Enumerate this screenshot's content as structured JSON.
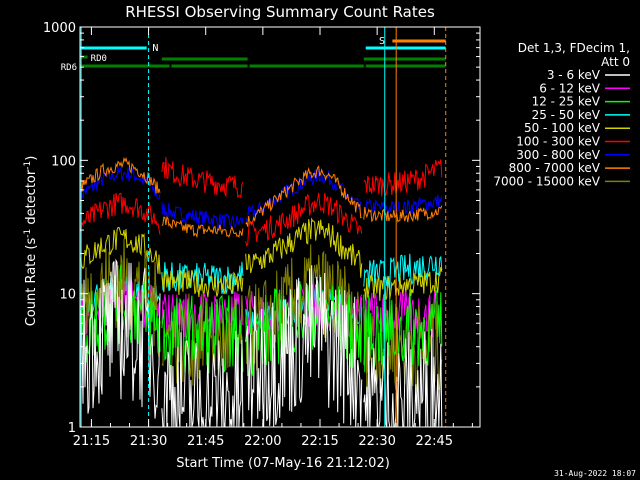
{
  "chart_data": {
    "type": "line",
    "title": "RHESSI Observing Summary Count Rates",
    "xlabel": "Start Time (07-May-16 21:12:02)",
    "ylabel_main": "Count Rate (s",
    "ylabel_sup1": "-1",
    "ylabel_mid": " detector",
    "ylabel_sup2": "-1",
    "ylabel_end": ")",
    "x_unit": "minutes after 21:12:02",
    "y_scale": "log",
    "ylim": [
      1,
      1000
    ],
    "xlim": [
      0,
      105
    ],
    "x_ticks": [
      {
        "m": 3,
        "label": "21:15"
      },
      {
        "m": 18,
        "label": "21:30"
      },
      {
        "m": 33,
        "label": "21:45"
      },
      {
        "m": 48,
        "label": "22:00"
      },
      {
        "m": 63,
        "label": "22:15"
      },
      {
        "m": 78,
        "label": "22:30"
      },
      {
        "m": 93,
        "label": "22:45"
      }
    ],
    "y_ticks": [
      {
        "v": 1,
        "label": "1"
      },
      {
        "v": 10,
        "label": "10"
      },
      {
        "v": 100,
        "label": "100"
      },
      {
        "v": 1000,
        "label": "1000"
      }
    ],
    "legend": {
      "position": "right",
      "header": [
        "Det 1,3, FDecim 1,",
        "Att 0"
      ],
      "entries": [
        {
          "name": "3 - 6 keV",
          "color": "#ffffff"
        },
        {
          "name": "6 - 12 keV",
          "color": "#ff00ff"
        },
        {
          "name": "12 - 25 keV",
          "color": "#00ff00"
        },
        {
          "name": "25 - 50 keV",
          "color": "#00ffff"
        },
        {
          "name": "50 - 100 keV",
          "color": "#d2d200"
        },
        {
          "name": "100 - 300 keV",
          "color": "#ff0000"
        },
        {
          "name": "300 - 800 keV",
          "color": "#0000ff"
        },
        {
          "name": "800 - 7000 keV",
          "color": "#ff8000"
        },
        {
          "name": "7000 - 15000 keV",
          "color": "#808000"
        }
      ]
    },
    "annotations": {
      "flags": [
        {
          "label": "N",
          "color": "#00ffff"
        },
        {
          "label": "S",
          "color": "#ff8000"
        },
        {
          "label": "RD0",
          "color": "#008000"
        },
        {
          "label": "RD6",
          "color": "#008000"
        }
      ],
      "timestamp": "31-Aug-2022 18:07"
    },
    "series": [
      {
        "name": "300 - 800 keV",
        "color": "#0000ff",
        "segments": [
          {
            "x": [
              0,
              3,
              6,
              9,
              12,
              15,
              18,
              21
            ],
            "y": [
              55,
              62,
              72,
              78,
              80,
              76,
              66,
              52
            ]
          },
          {
            "x": [
              21.5,
              25,
              30,
              35,
              40,
              43
            ],
            "y": [
              44,
              40,
              38,
              36,
              34,
              35
            ]
          },
          {
            "x": [
              43.5,
              48,
              53,
              57,
              60,
              63,
              66,
              70,
              74
            ],
            "y": [
              38,
              44,
              55,
              65,
              72,
              78,
              72,
              55,
              42
            ]
          },
          {
            "x": [
              74.5,
              80,
              85,
              90,
              95
            ],
            "y": [
              45,
              44,
              44,
              47,
              50
            ]
          }
        ]
      },
      {
        "name": "800 - 7000 keV",
        "color": "#ff8000",
        "segments": [
          {
            "x": [
              0,
              3,
              6,
              9,
              12,
              15,
              18,
              21
            ],
            "y": [
              62,
              72,
              84,
              90,
              93,
              86,
              74,
              58
            ]
          },
          {
            "x": [
              21.5,
              25,
              30,
              35,
              40,
              43
            ],
            "y": [
              36,
              32,
              30,
              30,
              29,
              30
            ]
          },
          {
            "x": [
              43.5,
              48,
              53,
              57,
              60,
              63,
              66,
              70,
              74
            ],
            "y": [
              34,
              42,
              55,
              68,
              78,
              84,
              75,
              55,
              40
            ]
          },
          {
            "x": [
              74.5,
              80,
              85,
              90,
              95
            ],
            "y": [
              40,
              38,
              38,
              40,
              42
            ]
          }
        ]
      },
      {
        "name": "100 - 300 keV",
        "color": "#ff0000",
        "segments": [
          {
            "x": [
              0,
              3,
              6,
              9,
              12,
              15,
              18,
              21
            ],
            "y": [
              33,
              37,
              43,
              47,
              48,
              45,
              40,
              34
            ]
          },
          {
            "x": [
              21.5,
              25,
              30,
              35,
              40,
              43
            ],
            "y": [
              92,
              80,
              72,
              68,
              65,
              64
            ]
          },
          {
            "x": [
              43.5,
              48,
              53,
              57,
              60,
              63,
              66,
              70,
              74
            ],
            "y": [
              28,
              30,
              34,
              40,
              46,
              50,
              45,
              36,
              28
            ]
          },
          {
            "x": [
              74.5,
              80,
              85,
              90,
              95
            ],
            "y": [
              65,
              66,
              68,
              75,
              88
            ]
          }
        ]
      },
      {
        "name": "25 - 50 keV",
        "color": "#00ffff",
        "segments": [
          {
            "x": [
              0,
              3,
              6,
              9,
              12,
              15,
              18,
              21
            ],
            "y": [
              9,
              9.5,
              10,
              10.5,
              10.5,
              10,
              9.5,
              9
            ]
          },
          {
            "x": [
              21.5,
              25,
              30,
              35,
              40,
              43
            ],
            "y": [
              14,
              13,
              13,
              13,
              13,
              14
            ]
          },
          {
            "x": [
              43.5,
              48,
              53,
              57,
              60,
              63,
              66,
              70,
              74
            ],
            "y": [
              6,
              6.5,
              7,
              8,
              8.5,
              9,
              8.5,
              7.5,
              7
            ]
          },
          {
            "x": [
              74.5,
              80,
              85,
              90,
              95
            ],
            "y": [
              14,
              14,
              15,
              16,
              18
            ]
          }
        ]
      },
      {
        "name": "50 - 100 keV",
        "color": "#d2d200",
        "segments": [
          {
            "x": [
              0,
              3,
              6,
              9,
              12,
              15,
              18,
              21
            ],
            "y": [
              18,
              20,
              23,
              25,
              26,
              24,
              21,
              17
            ]
          },
          {
            "x": [
              21.5,
              25,
              30,
              35,
              40,
              43
            ],
            "y": [
              13,
              12,
              12,
              11.5,
              11.5,
              12
            ]
          },
          {
            "x": [
              43.5,
              48,
              53,
              57,
              60,
              63,
              66,
              70,
              74
            ],
            "y": [
              16,
              18,
              22,
              26,
              29,
              30,
              27,
              21,
              16
            ]
          },
          {
            "x": [
              74.5,
              80,
              85,
              90,
              95
            ],
            "y": [
              11,
              11,
              11.5,
              12,
              13
            ]
          }
        ]
      },
      {
        "name": "6 - 12 keV",
        "color": "#ff00ff",
        "segments": [
          {
            "x": [
              0,
              3,
              6,
              9,
              12,
              15,
              18,
              21
            ],
            "y": [
              7,
              7.5,
              8,
              8.5,
              9,
              8.5,
              8,
              7
            ]
          },
          {
            "x": [
              21.5,
              25,
              30,
              35,
              40,
              43
            ],
            "y": [
              7,
              7,
              7,
              7,
              7,
              7
            ]
          },
          {
            "x": [
              43.5,
              48,
              53,
              57,
              60,
              63,
              66,
              70,
              74
            ],
            "y": [
              7,
              7,
              7.5,
              8,
              8,
              8,
              7.5,
              7,
              7
            ]
          },
          {
            "x": [
              74.5,
              80,
              85,
              90,
              95
            ],
            "y": [
              7,
              7,
              7,
              7,
              7
            ]
          }
        ]
      },
      {
        "name": "7000 - 15000 keV",
        "color": "#808000",
        "segments": [
          {
            "x": [
              0,
              3,
              6,
              9,
              12,
              15,
              18,
              21
            ],
            "y": [
              8,
              9.5,
              11,
              12,
              12,
              11,
              9,
              7
            ]
          },
          {
            "x": [
              21.5,
              25,
              30,
              35,
              40,
              43
            ],
            "y": [
              4.5,
              4.5,
              4.5,
              4.5,
              4.5,
              4.5
            ]
          },
          {
            "x": [
              43.5,
              48,
              53,
              57,
              60,
              63,
              66,
              70,
              74
            ],
            "y": [
              5,
              6,
              7.5,
              9,
              10.5,
              11,
              9.5,
              7,
              5
            ]
          },
          {
            "x": [
              74.5,
              80,
              85,
              90,
              95
            ],
            "y": [
              4,
              4,
              4,
              4,
              4
            ]
          }
        ]
      },
      {
        "name": "12 - 25 keV",
        "color": "#00ff00",
        "segments": [
          {
            "x": [
              0,
              3,
              6,
              9,
              12,
              15,
              18,
              21
            ],
            "y": [
              5,
              6,
              7,
              8,
              8.5,
              7.5,
              6.5,
              5.5
            ]
          },
          {
            "x": [
              21.5,
              25,
              30,
              35,
              40,
              43
            ],
            "y": [
              5,
              5,
              5,
              5,
              5,
              5
            ]
          },
          {
            "x": [
              43.5,
              48,
              53,
              57,
              60,
              63,
              66,
              70,
              74
            ],
            "y": [
              4.5,
              5,
              6,
              7,
              7.5,
              7.5,
              7,
              5.5,
              4.5
            ]
          },
          {
            "x": [
              74.5,
              80,
              85,
              90,
              95
            ],
            "y": [
              5,
              5,
              5.5,
              5.5,
              5.5
            ]
          }
        ]
      },
      {
        "name": "3 - 6 keV",
        "color": "#ffffff",
        "segments": [
          {
            "x": [
              0,
              3,
              6,
              9,
              12,
              15,
              18,
              21
            ],
            "y": [
              3.5,
              4.5,
              5,
              5.5,
              5.5,
              5,
              4.5,
              3.5
            ]
          },
          {
            "x": [
              21.5,
              25,
              30,
              35,
              40,
              43
            ],
            "y": [
              2,
              1.7,
              1.5,
              1.5,
              1.5,
              1.8
            ]
          },
          {
            "x": [
              43.5,
              48,
              53,
              57,
              60,
              63,
              66,
              70,
              74
            ],
            "y": [
              2.5,
              3,
              3.5,
              4.5,
              5,
              5,
              4.5,
              3.5,
              2.5
            ]
          },
          {
            "x": [
              74.5,
              80,
              85,
              90,
              95
            ],
            "y": [
              1.5,
              1.5,
              1.5,
              1.7,
              2
            ]
          }
        ]
      }
    ]
  }
}
